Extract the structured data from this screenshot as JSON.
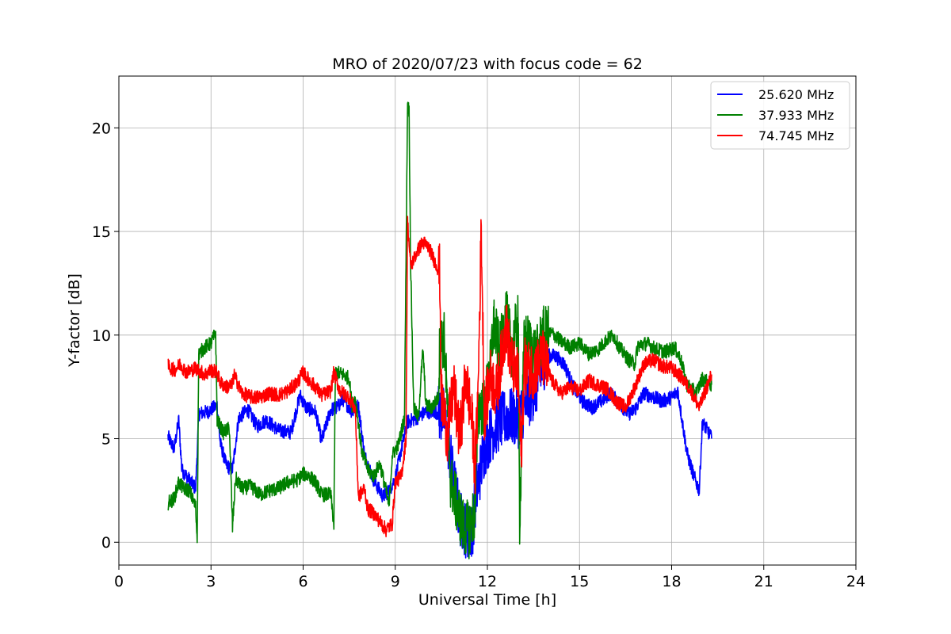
{
  "chart_data": {
    "type": "line",
    "title": "MRO of 2020/07/23 with focus code = 62",
    "xlabel": "Universal Time [h]",
    "ylabel": "Y-factor [dB]",
    "xlim": [
      0,
      24
    ],
    "ylim": [
      -1.1,
      22.5
    ],
    "xticks": [
      0,
      3,
      6,
      9,
      12,
      15,
      18,
      21,
      24
    ],
    "yticks": [
      0,
      5,
      10,
      15,
      20
    ],
    "grid": true,
    "legend_position": "top-right",
    "series": [
      {
        "name": "25.620 MHz",
        "color": "#0000ff",
        "points": [
          [
            1.6,
            5.1
          ],
          [
            1.8,
            4.5
          ],
          [
            1.95,
            5.9
          ],
          [
            2.05,
            3.5
          ],
          [
            2.3,
            3.0
          ],
          [
            2.5,
            2.6
          ],
          [
            2.6,
            6.2
          ],
          [
            2.9,
            6.3
          ],
          [
            3.2,
            6.6
          ],
          [
            3.3,
            4.8
          ],
          [
            3.5,
            3.7
          ],
          [
            3.7,
            3.5
          ],
          [
            3.9,
            6.0
          ],
          [
            4.2,
            6.4
          ],
          [
            4.5,
            5.6
          ],
          [
            4.8,
            5.9
          ],
          [
            5.2,
            5.4
          ],
          [
            5.6,
            5.3
          ],
          [
            5.9,
            7.1
          ],
          [
            6.1,
            6.5
          ],
          [
            6.4,
            6.3
          ],
          [
            6.6,
            4.9
          ],
          [
            6.9,
            6.4
          ],
          [
            7.1,
            6.5
          ],
          [
            7.3,
            6.9
          ],
          [
            7.6,
            6.3
          ],
          [
            7.8,
            6.6
          ],
          [
            8.0,
            4.2
          ],
          [
            8.3,
            3.0
          ],
          [
            8.6,
            2.2
          ],
          [
            8.8,
            2.5
          ],
          [
            9.0,
            3.1
          ],
          [
            9.2,
            4.5
          ],
          [
            9.4,
            5.8
          ],
          [
            9.7,
            6.0
          ],
          [
            10.0,
            6.3
          ],
          [
            10.3,
            6.3
          ],
          [
            10.6,
            6.1
          ],
          [
            10.9,
            3.0
          ],
          [
            11.1,
            1.2
          ],
          [
            11.3,
            0.6
          ],
          [
            11.5,
            0.5
          ],
          [
            11.65,
            2.5
          ],
          [
            11.9,
            4.5
          ],
          [
            12.1,
            5.2
          ],
          [
            12.4,
            5.8
          ],
          [
            12.7,
            6.1
          ],
          [
            13.0,
            5.9
          ],
          [
            13.3,
            6.8
          ],
          [
            13.6,
            7.5
          ],
          [
            13.9,
            9.0
          ],
          [
            14.2,
            9.0
          ],
          [
            14.5,
            8.6
          ],
          [
            14.8,
            7.5
          ],
          [
            15.1,
            6.8
          ],
          [
            15.4,
            6.5
          ],
          [
            15.7,
            6.8
          ],
          [
            16.0,
            7.2
          ],
          [
            16.3,
            6.7
          ],
          [
            16.6,
            6.2
          ],
          [
            16.8,
            6.4
          ],
          [
            17.1,
            7.2
          ],
          [
            17.4,
            7.0
          ],
          [
            17.7,
            6.8
          ],
          [
            18.0,
            7.0
          ],
          [
            18.2,
            7.3
          ],
          [
            18.35,
            5.8
          ],
          [
            18.5,
            4.3
          ],
          [
            18.7,
            3.3
          ],
          [
            18.9,
            2.5
          ],
          [
            19.0,
            5.8
          ],
          [
            19.2,
            5.3
          ],
          [
            19.3,
            5.0
          ]
        ]
      },
      {
        "name": "37.933 MHz",
        "color": "#008000",
        "points": [
          [
            1.6,
            1.9
          ],
          [
            1.8,
            2.1
          ],
          [
            1.95,
            2.9
          ],
          [
            2.1,
            2.6
          ],
          [
            2.3,
            2.5
          ],
          [
            2.5,
            1.7
          ],
          [
            2.55,
            0.1
          ],
          [
            2.6,
            9.1
          ],
          [
            2.8,
            9.4
          ],
          [
            3.0,
            9.6
          ],
          [
            3.15,
            10.1
          ],
          [
            3.2,
            5.9
          ],
          [
            3.4,
            5.3
          ],
          [
            3.6,
            5.5
          ],
          [
            3.7,
            0.7
          ],
          [
            3.8,
            3.1
          ],
          [
            4.0,
            2.6
          ],
          [
            4.3,
            2.7
          ],
          [
            4.6,
            2.3
          ],
          [
            4.9,
            2.5
          ],
          [
            5.2,
            2.6
          ],
          [
            5.5,
            2.9
          ],
          [
            5.8,
            3.0
          ],
          [
            6.0,
            3.3
          ],
          [
            6.2,
            3.2
          ],
          [
            6.4,
            2.9
          ],
          [
            6.6,
            2.3
          ],
          [
            6.9,
            2.3
          ],
          [
            7.0,
            0.8
          ],
          [
            7.05,
            8.2
          ],
          [
            7.3,
            8.1
          ],
          [
            7.5,
            7.9
          ],
          [
            7.6,
            6.5
          ],
          [
            7.7,
            7.0
          ],
          [
            7.9,
            4.5
          ],
          [
            8.1,
            3.5
          ],
          [
            8.3,
            3.2
          ],
          [
            8.5,
            3.8
          ],
          [
            8.7,
            2.5
          ],
          [
            8.8,
            1.7
          ],
          [
            8.9,
            4.2
          ],
          [
            9.1,
            4.7
          ],
          [
            9.3,
            6.0
          ],
          [
            9.4,
            21.2
          ],
          [
            9.45,
            20.8
          ],
          [
            9.5,
            13.5
          ],
          [
            9.6,
            6.5
          ],
          [
            9.75,
            6.0
          ],
          [
            9.9,
            9.3
          ],
          [
            10.0,
            6.6
          ],
          [
            10.2,
            6.5
          ],
          [
            10.4,
            7.0
          ],
          [
            10.45,
            9.5
          ],
          [
            10.6,
            9.8
          ],
          [
            10.8,
            3.0
          ],
          [
            11.0,
            1.8
          ],
          [
            11.2,
            0.8
          ],
          [
            11.4,
            0.6
          ],
          [
            11.6,
            1.5
          ],
          [
            11.7,
            6.5
          ],
          [
            11.9,
            6.5
          ],
          [
            12.1,
            8.5
          ],
          [
            12.2,
            10.6
          ],
          [
            12.4,
            9.1
          ],
          [
            12.6,
            11.0
          ],
          [
            12.8,
            9.3
          ],
          [
            13.0,
            10.8
          ],
          [
            13.05,
            1.1
          ],
          [
            13.2,
            9.8
          ],
          [
            13.4,
            9.5
          ],
          [
            13.6,
            9.0
          ],
          [
            13.8,
            10.0
          ],
          [
            14.1,
            10.1
          ],
          [
            14.4,
            9.7
          ],
          [
            14.7,
            9.4
          ],
          [
            15.0,
            9.6
          ],
          [
            15.3,
            9.1
          ],
          [
            15.6,
            9.3
          ],
          [
            15.9,
            9.8
          ],
          [
            16.1,
            10.0
          ],
          [
            16.3,
            9.4
          ],
          [
            16.6,
            8.8
          ],
          [
            16.8,
            8.6
          ],
          [
            16.9,
            9.5
          ],
          [
            17.2,
            9.6
          ],
          [
            17.5,
            9.3
          ],
          [
            17.8,
            9.2
          ],
          [
            18.1,
            9.4
          ],
          [
            18.3,
            8.8
          ],
          [
            18.5,
            7.6
          ],
          [
            18.8,
            7.2
          ],
          [
            19.0,
            7.9
          ],
          [
            19.3,
            7.6
          ]
        ]
      },
      {
        "name": "74.745 MHz",
        "color": "#ff0000",
        "points": [
          [
            1.6,
            8.5
          ],
          [
            1.8,
            8.3
          ],
          [
            2.0,
            8.6
          ],
          [
            2.2,
            8.2
          ],
          [
            2.5,
            8.4
          ],
          [
            2.8,
            8.1
          ],
          [
            3.0,
            8.3
          ],
          [
            3.2,
            8.2
          ],
          [
            3.3,
            7.7
          ],
          [
            3.5,
            7.5
          ],
          [
            3.7,
            7.6
          ],
          [
            3.75,
            8.1
          ],
          [
            4.0,
            7.2
          ],
          [
            4.3,
            7.0
          ],
          [
            4.6,
            7.0
          ],
          [
            4.9,
            7.2
          ],
          [
            5.2,
            7.1
          ],
          [
            5.5,
            7.3
          ],
          [
            5.8,
            7.7
          ],
          [
            6.0,
            8.2
          ],
          [
            6.2,
            7.8
          ],
          [
            6.4,
            7.5
          ],
          [
            6.6,
            7.1
          ],
          [
            6.9,
            7.3
          ],
          [
            7.0,
            8.2
          ],
          [
            7.2,
            7.3
          ],
          [
            7.5,
            7.0
          ],
          [
            7.7,
            6.4
          ],
          [
            7.8,
            2.2
          ],
          [
            8.0,
            2.6
          ],
          [
            8.1,
            1.6
          ],
          [
            8.3,
            1.4
          ],
          [
            8.5,
            1.0
          ],
          [
            8.7,
            0.6
          ],
          [
            8.9,
            0.9
          ],
          [
            9.0,
            2.9
          ],
          [
            9.2,
            3.2
          ],
          [
            9.35,
            5.0
          ],
          [
            9.4,
            15.5
          ],
          [
            9.5,
            13.3
          ],
          [
            9.7,
            14.0
          ],
          [
            9.9,
            14.5
          ],
          [
            10.1,
            14.2
          ],
          [
            10.3,
            13.5
          ],
          [
            10.45,
            13.0
          ],
          [
            10.5,
            7.0
          ],
          [
            10.7,
            5.2
          ],
          [
            10.9,
            7.5
          ],
          [
            11.1,
            5.0
          ],
          [
            11.3,
            8.0
          ],
          [
            11.5,
            5.8
          ],
          [
            11.6,
            3.5
          ],
          [
            11.7,
            7.5
          ],
          [
            11.8,
            15.2
          ],
          [
            11.9,
            6.2
          ],
          [
            12.1,
            8.0
          ],
          [
            12.3,
            7.2
          ],
          [
            12.6,
            10.5
          ],
          [
            12.8,
            8.6
          ],
          [
            13.0,
            7.9
          ],
          [
            13.1,
            4.2
          ],
          [
            13.2,
            8.5
          ],
          [
            13.5,
            8.3
          ],
          [
            13.8,
            8.9
          ],
          [
            14.1,
            7.8
          ],
          [
            14.4,
            7.2
          ],
          [
            14.7,
            7.5
          ],
          [
            15.0,
            7.3
          ],
          [
            15.3,
            7.8
          ],
          [
            15.6,
            7.6
          ],
          [
            15.9,
            7.4
          ],
          [
            16.2,
            6.8
          ],
          [
            16.5,
            6.5
          ],
          [
            16.8,
            7.5
          ],
          [
            17.1,
            8.6
          ],
          [
            17.4,
            8.8
          ],
          [
            17.7,
            8.5
          ],
          [
            18.0,
            8.4
          ],
          [
            18.3,
            8.0
          ],
          [
            18.6,
            7.4
          ],
          [
            18.9,
            6.5
          ],
          [
            19.1,
            7.3
          ],
          [
            19.3,
            8.1
          ]
        ]
      }
    ]
  }
}
